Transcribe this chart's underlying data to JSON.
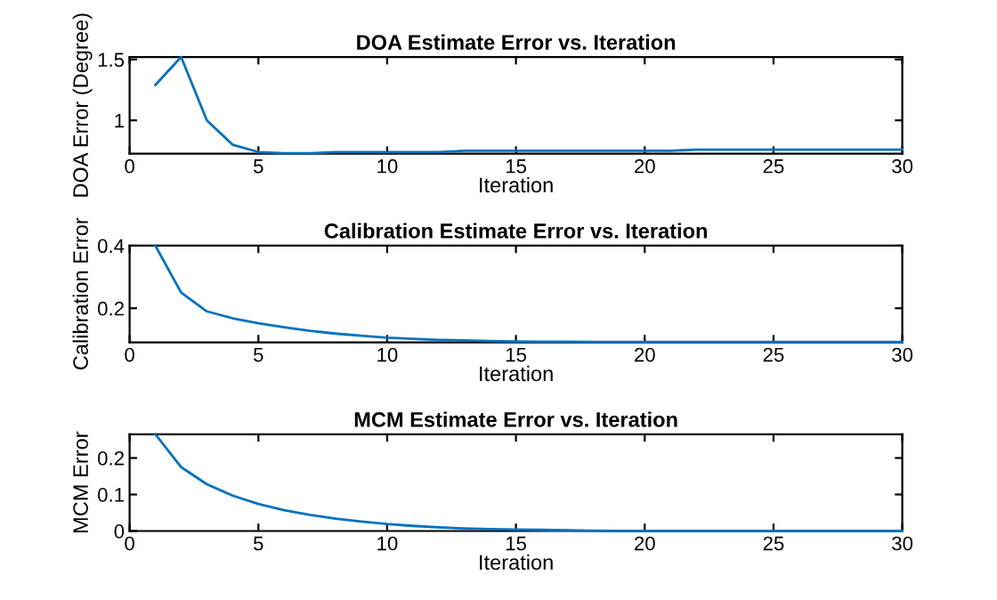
{
  "chart_data": [
    {
      "type": "line",
      "title": "DOA Estimate Error vs. Iteration",
      "xlabel": "Iteration",
      "ylabel": "DOA Error (Degree)",
      "x": [
        1,
        2,
        3,
        4,
        5,
        6,
        7,
        8,
        9,
        10,
        11,
        12,
        13,
        14,
        15,
        16,
        17,
        18,
        19,
        20,
        21,
        22,
        23,
        24,
        25,
        26,
        27,
        28,
        29,
        30
      ],
      "series": [
        {
          "color": "#0072bd",
          "values": [
            1.29,
            1.52,
            1.0,
            0.8,
            0.74,
            0.73,
            0.73,
            0.74,
            0.74,
            0.74,
            0.74,
            0.74,
            0.75,
            0.75,
            0.75,
            0.75,
            0.75,
            0.75,
            0.75,
            0.75,
            0.75,
            0.76,
            0.76,
            0.76,
            0.76,
            0.76,
            0.76,
            0.76,
            0.76,
            0.76
          ]
        }
      ],
      "xlim": [
        0,
        30
      ],
      "xticks": [
        0,
        5,
        10,
        15,
        20,
        25,
        30
      ],
      "ylim": [
        0.726,
        1.52
      ],
      "yticks": [
        1,
        1.5
      ],
      "grid": false,
      "legend": false
    },
    {
      "type": "line",
      "title": "Calibration Estimate Error vs. Iteration",
      "xlabel": "Iteration",
      "ylabel": "Calibration Error",
      "x": [
        1,
        2,
        3,
        4,
        5,
        6,
        7,
        8,
        9,
        10,
        11,
        12,
        13,
        14,
        15,
        16,
        17,
        18,
        19,
        20,
        21,
        22,
        23,
        24,
        25,
        26,
        27,
        28,
        29,
        30
      ],
      "series": [
        {
          "color": "#0072bd",
          "values": [
            0.4,
            0.25,
            0.19,
            0.168,
            0.152,
            0.139,
            0.128,
            0.119,
            0.112,
            0.106,
            0.102,
            0.099,
            0.097,
            0.095,
            0.094,
            0.093,
            0.093,
            0.092,
            0.092,
            0.092,
            0.092,
            0.092,
            0.092,
            0.092,
            0.092,
            0.092,
            0.092,
            0.092,
            0.092,
            0.092
          ]
        }
      ],
      "xlim": [
        0,
        30
      ],
      "xticks": [
        0,
        5,
        10,
        15,
        20,
        25,
        30
      ],
      "ylim": [
        0.091,
        0.4
      ],
      "yticks": [
        0.2,
        0.4
      ],
      "grid": false,
      "legend": false
    },
    {
      "type": "line",
      "title": "MCM Estimate Error vs. Iteration",
      "xlabel": "Iteration",
      "ylabel": "MCM Error",
      "x": [
        1,
        2,
        3,
        4,
        5,
        6,
        7,
        8,
        9,
        10,
        11,
        12,
        13,
        14,
        15,
        16,
        17,
        18,
        19,
        20,
        21,
        22,
        23,
        24,
        25,
        26,
        27,
        28,
        29,
        30
      ],
      "series": [
        {
          "color": "#0072bd",
          "values": [
            0.265,
            0.175,
            0.128,
            0.097,
            0.074,
            0.057,
            0.044,
            0.034,
            0.026,
            0.019,
            0.014,
            0.01,
            0.007,
            0.005,
            0.004,
            0.003,
            0.002,
            0.001,
            0,
            0,
            0,
            0,
            0,
            0,
            0,
            0,
            0,
            0,
            0,
            0
          ]
        }
      ],
      "xlim": [
        0,
        30
      ],
      "xticks": [
        0,
        5,
        10,
        15,
        20,
        25,
        30
      ],
      "ylim": [
        0,
        0.265
      ],
      "yticks": [
        0,
        0.1,
        0.2
      ],
      "grid": false,
      "legend": false
    }
  ]
}
